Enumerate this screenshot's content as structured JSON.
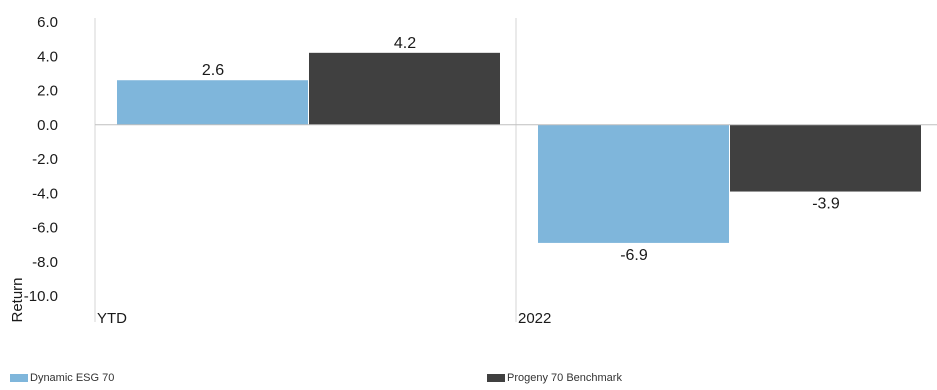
{
  "chart_data": {
    "type": "bar",
    "categories": [
      "YTD",
      "2022"
    ],
    "series": [
      {
        "name": "Dynamic ESG 70",
        "values": [
          2.6,
          -6.9
        ],
        "color": "#7fb6db"
      },
      {
        "name": "Progeny 70 Benchmark",
        "values": [
          4.2,
          -3.9
        ],
        "color": "#404040"
      }
    ],
    "ylabel": "Return",
    "ylim": [
      -10.0,
      6.0
    ],
    "yticks": [
      "6.0",
      "4.0",
      "2.0",
      "0.0",
      "-2.0",
      "-4.0",
      "-6.0",
      "-8.0",
      "-10.0"
    ],
    "data_labels": [
      [
        "2.6",
        "-6.9"
      ],
      [
        "4.2",
        "-3.9"
      ]
    ],
    "grid": "vertical category separators",
    "legend_position": "bottom"
  }
}
